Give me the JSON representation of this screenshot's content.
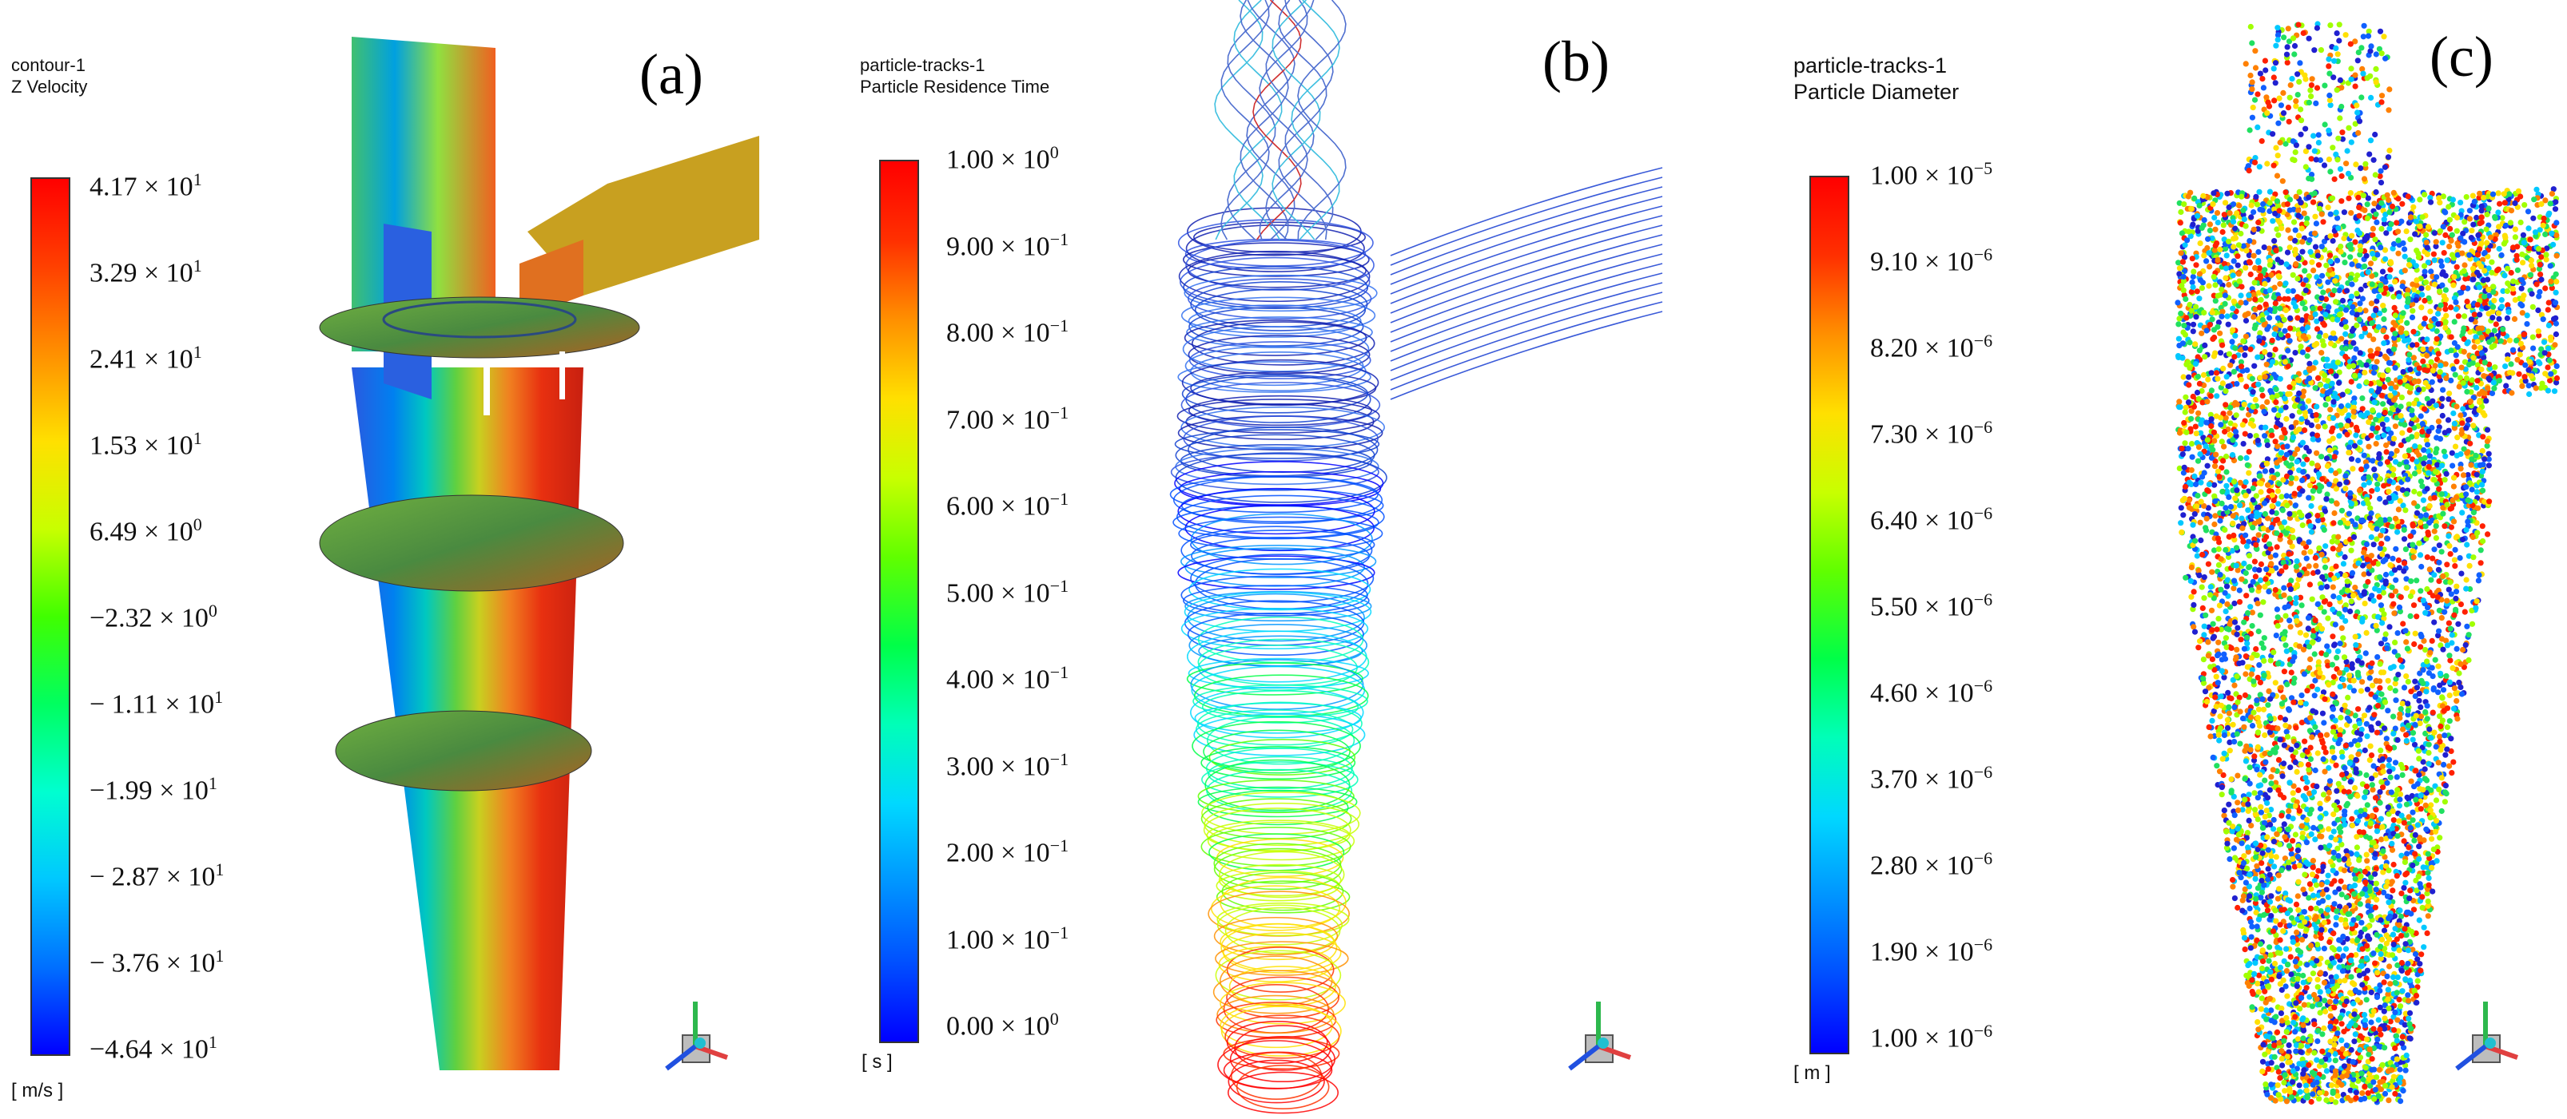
{
  "panels": {
    "a": {
      "label": "(a)",
      "title_line1": "contour-1",
      "title_line2": "Z Velocity",
      "units": "[ m/s ]",
      "ticks": [
        {
          "m": "4.17",
          "e": "1"
        },
        {
          "m": "3.29",
          "e": "1"
        },
        {
          "m": "2.41",
          "e": "1"
        },
        {
          "m": "1.53",
          "e": "1"
        },
        {
          "m": "6.49",
          "e": "0"
        },
        {
          "m": "−2.32",
          "e": "0"
        },
        {
          "m": "− 1.11",
          "e": "1"
        },
        {
          "m": "−1.99",
          "e": "1"
        },
        {
          "m": "− 2.87",
          "e": "1"
        },
        {
          "m": "− 3.76",
          "e": "1"
        },
        {
          "m": "−4.64",
          "e": "1"
        }
      ]
    },
    "b": {
      "label": "(b)",
      "title_line1": "particle-tracks-1",
      "title_line2": "Particle Residence Time",
      "units": "[ s ]",
      "ticks": [
        {
          "m": "1.00",
          "e": "0"
        },
        {
          "m": "9.00",
          "e": "−1"
        },
        {
          "m": "8.00",
          "e": "−1"
        },
        {
          "m": "7.00",
          "e": "−1"
        },
        {
          "m": "6.00",
          "e": "−1"
        },
        {
          "m": "5.00",
          "e": "−1"
        },
        {
          "m": "4.00",
          "e": "−1"
        },
        {
          "m": "3.00",
          "e": "−1"
        },
        {
          "m": "2.00",
          "e": "−1"
        },
        {
          "m": "1.00",
          "e": "−1"
        },
        {
          "m": "0.00",
          "e": "0"
        }
      ]
    },
    "c": {
      "label": "(c)",
      "title_line1": "particle-tracks-1",
      "title_line2": "Particle Diameter",
      "units": "[ m ]",
      "ticks": [
        {
          "m": "1.00",
          "e": "−5"
        },
        {
          "m": "9.10",
          "e": "−6"
        },
        {
          "m": "8.20",
          "e": "−6"
        },
        {
          "m": "7.30",
          "e": "−6"
        },
        {
          "m": "6.40",
          "e": "−6"
        },
        {
          "m": "5.50",
          "e": "−6"
        },
        {
          "m": "4.60",
          "e": "−6"
        },
        {
          "m": "3.70",
          "e": "−6"
        },
        {
          "m": "2.80",
          "e": "−6"
        },
        {
          "m": "1.90",
          "e": "−6"
        },
        {
          "m": "1.00",
          "e": "−6"
        }
      ]
    }
  },
  "colors": {
    "scale": [
      "#0000ff",
      "#0050ff",
      "#0095ff",
      "#00d8ff",
      "#00ffb8",
      "#00ff48",
      "#60ff00",
      "#c8ff00",
      "#ffe000",
      "#ff9000",
      "#ff3000",
      "#ff0000"
    ]
  }
}
